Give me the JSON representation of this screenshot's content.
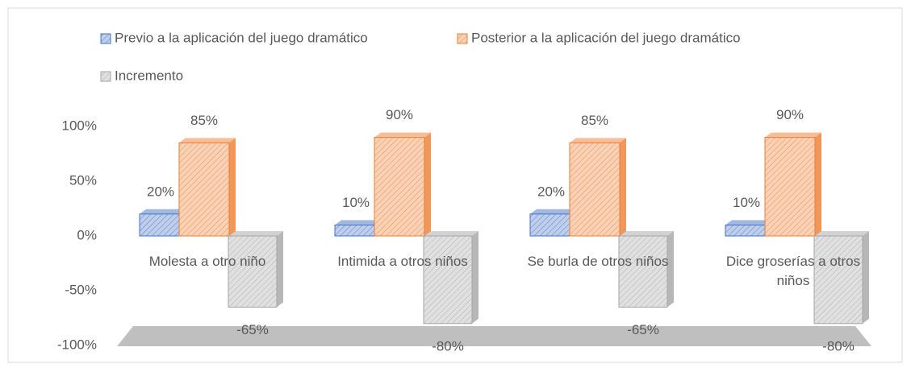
{
  "chart_data": {
    "type": "bar3d",
    "categories": [
      "Molesta a otro niño",
      "Intimida a otros niños",
      "Se burla de otros niños",
      "Dice groserías a otros niños"
    ],
    "series": [
      {
        "name": "Previo a la aplicación del juego dramático",
        "color": "#4472c4",
        "values": [
          20,
          10,
          20,
          10
        ],
        "value_labels": [
          "20%",
          "10%",
          "20%",
          "10%"
        ]
      },
      {
        "name": "Posterior a la aplicación del juego dramático",
        "color": "#ed7d31",
        "values": [
          85,
          90,
          85,
          90
        ],
        "value_labels": [
          "85%",
          "90%",
          "85%",
          "90%"
        ]
      },
      {
        "name": "Incremento",
        "color": "#a5a5a5",
        "values": [
          -65,
          -80,
          -65,
          -80
        ],
        "value_labels": [
          "-65%",
          "-80%",
          "-65%",
          "-80%"
        ]
      }
    ],
    "ylim": [
      -100,
      100
    ],
    "yticks": [
      {
        "value": -100,
        "label": "-100%"
      },
      {
        "value": -50,
        "label": "-50%"
      },
      {
        "value": 0,
        "label": "0%"
      },
      {
        "value": 50,
        "label": "50%"
      },
      {
        "value": 100,
        "label": "100%"
      }
    ],
    "legend": "top"
  }
}
